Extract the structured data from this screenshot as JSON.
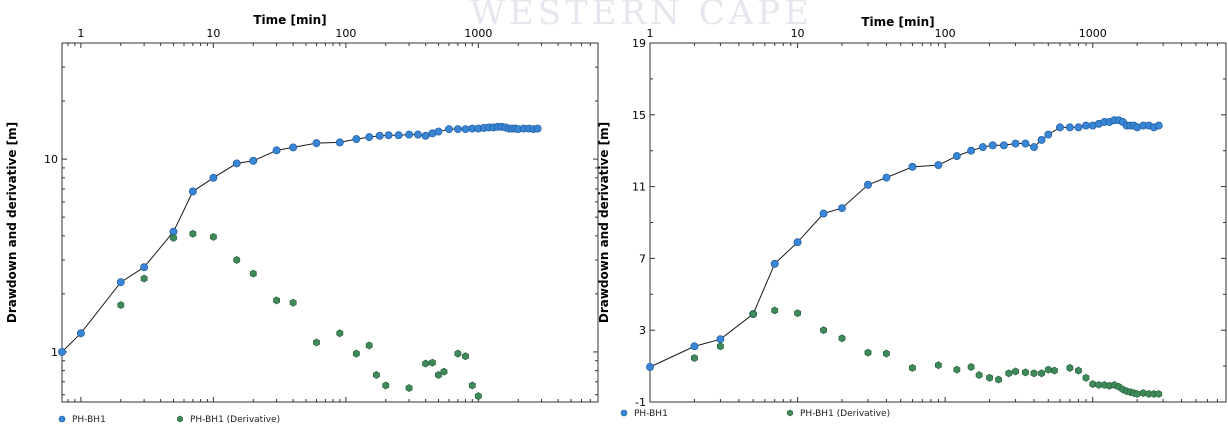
{
  "watermark": "WESTERN CAPE",
  "chart_data": [
    {
      "type": "scatter",
      "xscale": "log",
      "yscale": "log",
      "xlabel": "Time [min]",
      "ylabel": "Drawdown and derivative [m]",
      "xlim": [
        0.72,
        8000
      ],
      "ylim": [
        0.55,
        40
      ],
      "xticks": [
        1,
        10,
        100,
        1000
      ],
      "xtick_labels": [
        "1",
        "10",
        "100",
        "1000"
      ],
      "yticks": [
        1,
        10
      ],
      "ytick_labels": [
        "1",
        "10"
      ],
      "grid": false,
      "legend_position": "bottom-left",
      "series": [
        {
          "name": "PH-BH1",
          "color": "#3a86d6",
          "line": true,
          "x": [
            0.72,
            1,
            2,
            3,
            5,
            7,
            10,
            15,
            20,
            30,
            40,
            60,
            90,
            120,
            150,
            180,
            210,
            250,
            300,
            350,
            400,
            450,
            500,
            600,
            700,
            800,
            900,
            1000,
            1100,
            1200,
            1300,
            1400,
            1500,
            1600,
            1700,
            1800,
            1900,
            2000,
            2200,
            2400,
            2600,
            2800
          ],
          "y": [
            1.0,
            1.25,
            2.3,
            2.75,
            4.2,
            6.8,
            8.0,
            9.5,
            9.8,
            11.1,
            11.5,
            12.1,
            12.2,
            12.7,
            13.0,
            13.2,
            13.3,
            13.3,
            13.4,
            13.4,
            13.2,
            13.6,
            13.9,
            14.3,
            14.3,
            14.3,
            14.4,
            14.4,
            14.5,
            14.6,
            14.6,
            14.7,
            14.7,
            14.6,
            14.4,
            14.4,
            14.4,
            14.3,
            14.4,
            14.4,
            14.3,
            14.4
          ]
        },
        {
          "name": "PH-BH1 (Derivative)",
          "color": "#3e8a58",
          "line": false,
          "x": [
            2,
            3,
            5,
            7,
            10,
            15,
            20,
            30,
            40,
            60,
            90,
            120,
            150,
            170,
            200,
            300,
            400,
            450,
            500,
            550,
            700,
            800,
            900,
            1000
          ],
          "y": [
            1.75,
            2.4,
            3.9,
            4.1,
            3.95,
            3.0,
            2.55,
            1.85,
            1.8,
            1.12,
            1.25,
            0.98,
            1.08,
            0.76,
            0.67,
            0.65,
            0.87,
            0.88,
            0.76,
            0.79,
            0.98,
            0.95,
            0.67,
            0.59
          ]
        }
      ]
    },
    {
      "type": "scatter",
      "xscale": "log",
      "yscale": "linear",
      "xlabel": "Time [min]",
      "ylabel": "Drawdown and derivative [m]",
      "xlim": [
        1,
        8000
      ],
      "ylim": [
        -1,
        19
      ],
      "xticks": [
        1,
        10,
        100,
        1000
      ],
      "xtick_labels": [
        "1",
        "10",
        "100",
        "1000"
      ],
      "yticks": [
        -1,
        3,
        7,
        11,
        15,
        19
      ],
      "ytick_labels": [
        "-1",
        "3",
        "7",
        "11",
        "15",
        "19"
      ],
      "grid": false,
      "legend_position": "bottom-left",
      "series": [
        {
          "name": "PH-BH1",
          "color": "#3a86d6",
          "line": true,
          "x": [
            1,
            2,
            3,
            5,
            7,
            10,
            15,
            20,
            30,
            40,
            60,
            90,
            120,
            150,
            180,
            210,
            250,
            300,
            350,
            400,
            450,
            500,
            600,
            700,
            800,
            900,
            1000,
            1100,
            1200,
            1300,
            1400,
            1500,
            1600,
            1700,
            1800,
            1900,
            2000,
            2200,
            2400,
            2600,
            2800
          ],
          "y": [
            0.95,
            2.1,
            2.5,
            3.9,
            6.7,
            7.9,
            9.5,
            9.8,
            11.1,
            11.5,
            12.1,
            12.2,
            12.7,
            13.0,
            13.2,
            13.3,
            13.3,
            13.4,
            13.4,
            13.2,
            13.6,
            13.9,
            14.3,
            14.3,
            14.3,
            14.4,
            14.4,
            14.5,
            14.6,
            14.6,
            14.7,
            14.7,
            14.6,
            14.4,
            14.4,
            14.4,
            14.3,
            14.4,
            14.4,
            14.3,
            14.4
          ]
        },
        {
          "name": "PH-BH1 (Derivative)",
          "color": "#3e8a58",
          "line": false,
          "x": [
            2,
            3,
            5,
            7,
            10,
            15,
            20,
            30,
            40,
            60,
            90,
            120,
            150,
            170,
            200,
            230,
            270,
            300,
            350,
            400,
            450,
            500,
            550,
            700,
            800,
            900,
            1000,
            1100,
            1200,
            1300,
            1400,
            1500,
            1600,
            1700,
            1800,
            1900,
            2000,
            2200,
            2400,
            2600,
            2800
          ],
          "y": [
            1.45,
            2.1,
            3.9,
            4.1,
            3.95,
            3.0,
            2.55,
            1.75,
            1.7,
            0.9,
            1.05,
            0.8,
            0.95,
            0.5,
            0.35,
            0.25,
            0.6,
            0.7,
            0.65,
            0.6,
            0.6,
            0.8,
            0.75,
            0.9,
            0.75,
            0.35,
            0.0,
            -0.05,
            -0.05,
            -0.1,
            -0.05,
            -0.15,
            -0.3,
            -0.4,
            -0.45,
            -0.5,
            -0.55,
            -0.5,
            -0.55,
            -0.55,
            -0.55
          ]
        }
      ]
    }
  ]
}
